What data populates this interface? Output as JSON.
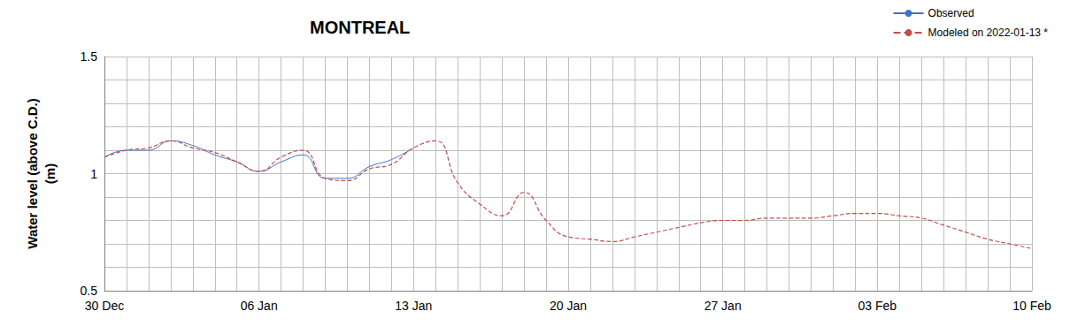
{
  "chart_data": {
    "type": "line",
    "title": "MONTREAL",
    "y_label": "Water level (above C.D.)\n(m)",
    "x": [
      "30 Dec",
      null,
      null,
      null,
      null,
      null,
      null,
      "06 Jan",
      null,
      null,
      null,
      null,
      null,
      null,
      "13 Jan",
      null,
      null,
      null,
      null,
      null,
      null,
      "20 Jan",
      null,
      null,
      null,
      null,
      null,
      null,
      "27 Jan",
      null,
      null,
      null,
      null,
      null,
      null,
      "03 Feb",
      null,
      null,
      null,
      null,
      null,
      null,
      "10 Feb"
    ],
    "series": [
      {
        "name": "Observed",
        "color": "#4472c4",
        "line_style": "solid",
        "marker": "none",
        "values": [
          1.07,
          1.1,
          1.1,
          1.14,
          1.12,
          1.08,
          1.05,
          1.01,
          1.05,
          1.08,
          0.98,
          0.98,
          1.03,
          1.06,
          1.11,
          null,
          null,
          null,
          null,
          null,
          null,
          null,
          null,
          null,
          null,
          null,
          null,
          null,
          null,
          null,
          null,
          null,
          null,
          null,
          null,
          null,
          null,
          null,
          null,
          null,
          null,
          null,
          null
        ]
      },
      {
        "name": "Modeled on 2022-01-13 *",
        "color": "#c0504d",
        "line_style": "dashed",
        "marker": "none",
        "values": [
          1.07,
          1.1,
          1.11,
          1.14,
          1.11,
          1.09,
          1.05,
          1.01,
          1.07,
          1.1,
          0.98,
          0.97,
          1.02,
          1.04,
          1.11,
          1.14,
          0.96,
          0.87,
          0.82,
          0.92,
          0.8,
          0.73,
          0.72,
          0.71,
          0.73,
          0.75,
          0.77,
          0.79,
          0.8,
          0.8,
          0.81,
          0.81,
          0.81,
          0.82,
          0.83,
          0.83,
          0.82,
          0.81,
          0.78,
          0.75,
          0.72,
          0.7,
          0.68
        ]
      }
    ],
    "ylim": [
      0.5,
      1.5
    ],
    "yticks": [
      0.5,
      1,
      1.5
    ],
    "grid": true,
    "legend": "top-right"
  }
}
